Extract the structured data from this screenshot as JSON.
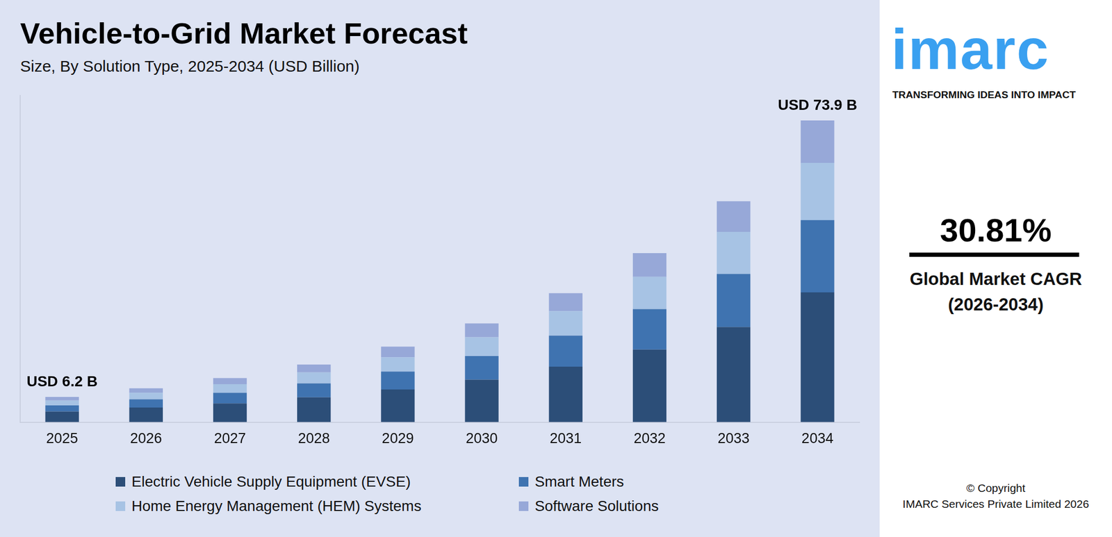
{
  "chart_data": {
    "type": "bar",
    "title": "Vehicle-to-Grid Market Forecast",
    "subtitle": "Size, By Solution Type, 2025-2034 (USD Billion)",
    "categories": [
      "2025",
      "2026",
      "2027",
      "2028",
      "2029",
      "2030",
      "2031",
      "2032",
      "2033",
      "2034"
    ],
    "series": [
      {
        "name": "Electric Vehicle Supply Equipment (EVSE)",
        "color": "#2c4e78",
        "values": [
          2.6,
          3.6,
          4.6,
          6.1,
          8.0,
          10.4,
          13.6,
          17.8,
          23.3,
          31.8
        ]
      },
      {
        "name": "Smart Meters",
        "color": "#3f73b0",
        "values": [
          1.5,
          2.0,
          2.6,
          3.4,
          4.4,
          5.8,
          7.6,
          9.9,
          13.0,
          17.7
        ]
      },
      {
        "name": "Home Energy Management (HEM) Systems",
        "color": "#a7c3e4",
        "values": [
          1.2,
          1.6,
          2.1,
          2.7,
          3.5,
          4.6,
          6.0,
          7.9,
          10.3,
          14.0
        ]
      },
      {
        "name": "Software Solutions",
        "color": "#97a8d8",
        "values": [
          0.9,
          1.1,
          1.5,
          1.9,
          2.6,
          3.4,
          4.4,
          5.8,
          7.5,
          10.4
        ]
      }
    ],
    "annotations": [
      {
        "text": "USD 6.2 B",
        "category": "2025"
      },
      {
        "text": "USD 73.9 B",
        "category": "2034"
      }
    ],
    "ylim": [
      0,
      80
    ],
    "stacked": true,
    "grid": false,
    "tick_labels": "x",
    "legend": "bottom"
  },
  "side_panel": {
    "logo": "imarc",
    "tagline": "TRANSFORMING IDEAS INTO IMPACT",
    "cagr": {
      "value": 30.81,
      "label": "30.81%"
    },
    "cagr_label": "Global Market CAGR (2026-2034)",
    "copyright": "© Copyright",
    "company": "IMARC Services Private Limited 2026"
  }
}
